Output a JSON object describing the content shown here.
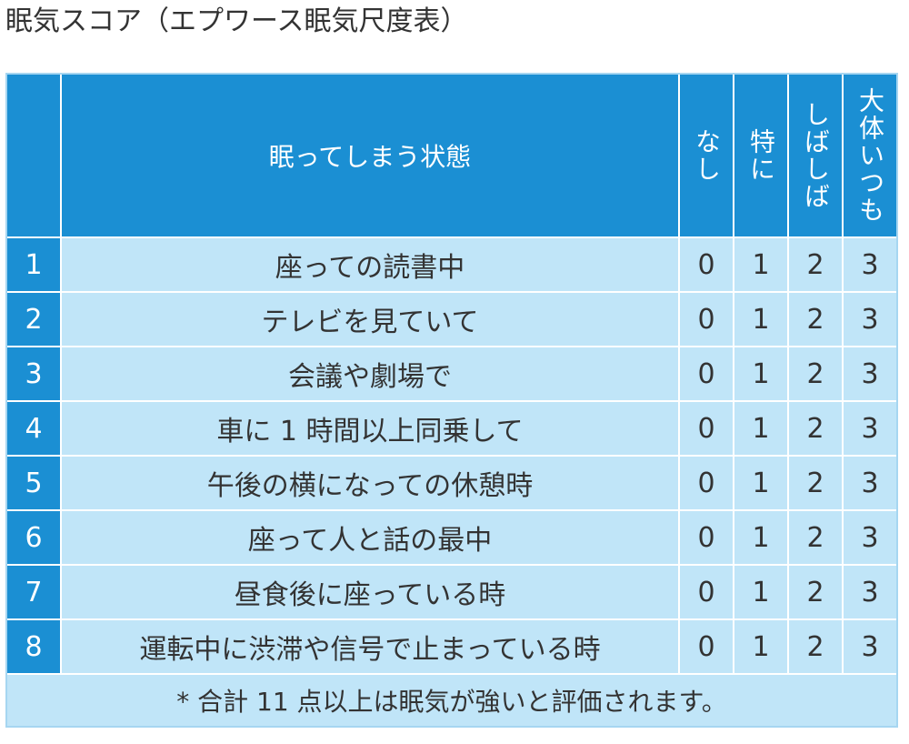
{
  "title": "眠気スコア（エプワース眠気尺度表）",
  "table": {
    "header": {
      "number": "",
      "situation": "眠ってしまう状態",
      "scores": [
        "なし",
        "特に",
        "しばしば",
        "大体いつも"
      ]
    },
    "rows": [
      {
        "no": "1",
        "situation": "座っての読書中",
        "scores": [
          "0",
          "1",
          "2",
          "3"
        ]
      },
      {
        "no": "2",
        "situation": "テレビを見ていて",
        "scores": [
          "0",
          "1",
          "2",
          "3"
        ]
      },
      {
        "no": "3",
        "situation": "会議や劇場で",
        "scores": [
          "0",
          "1",
          "2",
          "3"
        ]
      },
      {
        "no": "4",
        "situation": "車に 1 時間以上同乗して",
        "scores": [
          "0",
          "1",
          "2",
          "3"
        ]
      },
      {
        "no": "5",
        "situation": "午後の横になっての休憩時",
        "scores": [
          "0",
          "1",
          "2",
          "3"
        ]
      },
      {
        "no": "6",
        "situation": "座って人と話の最中",
        "scores": [
          "0",
          "1",
          "2",
          "3"
        ]
      },
      {
        "no": "7",
        "situation": "昼食後に座っている時",
        "scores": [
          "0",
          "1",
          "2",
          "3"
        ]
      },
      {
        "no": "8",
        "situation": "運転中に渋滞や信号で止まっている時",
        "scores": [
          "0",
          "1",
          "2",
          "3"
        ]
      }
    ],
    "footnote": "* 合計 11 点以上は眠気が強いと評価されます。"
  },
  "colors": {
    "header": "#1b8fd3",
    "row": "#c0e5f8",
    "text": "#333333"
  }
}
